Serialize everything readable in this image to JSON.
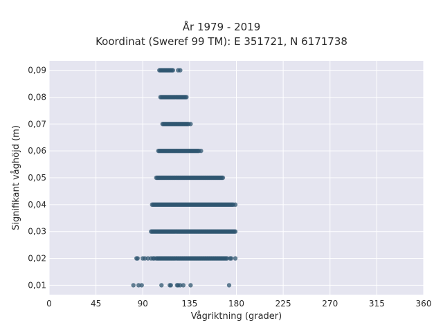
{
  "chart_data": {
    "type": "scatter",
    "title": "År 1979 - 2019",
    "subtitle": "Koordinat (Sweref 99 TM): E 351721, N 6171738",
    "xlabel": "Vågriktning (grader)",
    "ylabel": "Signifikant våghöjd (m)",
    "xlim": [
      0,
      360
    ],
    "ylim": [
      0.0065,
      0.0935
    ],
    "x_ticks": [
      0,
      45,
      90,
      135,
      180,
      225,
      270,
      315,
      360
    ],
    "x_tick_labels": [
      "0",
      "45",
      "90",
      "135",
      "180",
      "225",
      "270",
      "315",
      "360"
    ],
    "y_ticks": [
      0.01,
      0.02,
      0.03,
      0.04,
      0.05,
      0.06,
      0.07,
      0.08,
      0.09
    ],
    "y_tick_labels": [
      "0,01",
      "0,02",
      "0,03",
      "0,04",
      "0,05",
      "0,06",
      "0,07",
      "0,08",
      "0,09"
    ],
    "grid": true,
    "marker_color": "#2f5670",
    "background_color": "#e5e5f0",
    "series": [
      {
        "points": [
          {
            "y": 0.01,
            "x": [
              81,
              86,
              89,
              108,
              116,
              117,
              123,
              124,
              126,
              129,
              136,
              173
            ]
          },
          {
            "y": 0.02,
            "x": [
              84,
              85,
              90,
              92,
              95,
              98,
              100,
              101,
              103,
              104,
              105,
              106,
              107,
              108,
              109,
              110,
              111,
              112,
              113,
              114,
              115,
              116,
              117,
              118,
              119,
              120,
              121,
              122,
              123,
              124,
              125,
              126,
              127,
              128,
              129,
              130,
              131,
              132,
              133,
              134,
              135,
              136,
              137,
              138,
              139,
              140,
              141,
              142,
              143,
              144,
              145,
              146,
              147,
              148,
              149,
              150,
              151,
              152,
              153,
              154,
              155,
              156,
              157,
              158,
              159,
              160,
              161,
              162,
              163,
              164,
              165,
              166,
              167,
              168,
              169,
              170,
              171,
              174,
              175,
              179
            ]
          },
          {
            "y": 0.03,
            "x": [
              98,
              99,
              100,
              101,
              102,
              103,
              104,
              105,
              106,
              107,
              108,
              109,
              110,
              111,
              112,
              113,
              114,
              115,
              116,
              117,
              118,
              119,
              120,
              121,
              122,
              123,
              124,
              125,
              126,
              127,
              128,
              129,
              130,
              131,
              132,
              133,
              134,
              135,
              136,
              137,
              138,
              139,
              140,
              141,
              142,
              143,
              144,
              145,
              146,
              147,
              148,
              149,
              150,
              151,
              152,
              153,
              154,
              155,
              156,
              157,
              158,
              159,
              160,
              161,
              162,
              163,
              164,
              165,
              166,
              167,
              168,
              169,
              170,
              171,
              172,
              173,
              174,
              175,
              176,
              177,
              178,
              179
            ]
          },
          {
            "y": 0.04,
            "x": [
              99,
              100,
              101,
              102,
              103,
              104,
              105,
              106,
              107,
              108,
              109,
              110,
              111,
              112,
              113,
              114,
              115,
              116,
              117,
              118,
              119,
              120,
              121,
              122,
              123,
              124,
              125,
              126,
              127,
              128,
              129,
              130,
              131,
              132,
              133,
              134,
              135,
              136,
              137,
              138,
              139,
              140,
              141,
              142,
              143,
              144,
              145,
              146,
              147,
              148,
              149,
              150,
              151,
              152,
              153,
              154,
              155,
              156,
              157,
              158,
              159,
              160,
              161,
              162,
              163,
              164,
              165,
              166,
              167,
              168,
              169,
              170,
              171,
              172,
              173,
              174,
              175,
              176,
              177,
              179
            ]
          },
          {
            "y": 0.05,
            "x": [
              103,
              104,
              105,
              106,
              107,
              108,
              109,
              110,
              111,
              112,
              113,
              114,
              115,
              116,
              117,
              118,
              119,
              120,
              121,
              122,
              123,
              124,
              125,
              126,
              127,
              128,
              129,
              130,
              131,
              132,
              133,
              134,
              135,
              136,
              137,
              138,
              139,
              140,
              141,
              142,
              143,
              144,
              145,
              146,
              147,
              148,
              149,
              150,
              151,
              152,
              153,
              154,
              155,
              156,
              157,
              158,
              159,
              160,
              161,
              162,
              163,
              164,
              165,
              166,
              167
            ]
          },
          {
            "y": 0.06,
            "x": [
              105,
              106,
              107,
              108,
              109,
              110,
              111,
              112,
              113,
              114,
              115,
              116,
              117,
              118,
              119,
              120,
              121,
              122,
              123,
              124,
              125,
              126,
              127,
              128,
              129,
              130,
              131,
              132,
              133,
              134,
              135,
              136,
              137,
              138,
              139,
              140,
              141,
              142,
              143,
              144,
              146
            ]
          },
          {
            "y": 0.07,
            "x": [
              109,
              110,
              111,
              112,
              113,
              114,
              115,
              116,
              117,
              118,
              119,
              120,
              121,
              122,
              123,
              124,
              125,
              126,
              127,
              128,
              129,
              130,
              131,
              132,
              133,
              134,
              136
            ]
          },
          {
            "y": 0.08,
            "x": [
              107,
              108,
              109,
              110,
              111,
              112,
              113,
              114,
              115,
              116,
              117,
              118,
              119,
              120,
              121,
              122,
              123,
              124,
              125,
              126,
              127,
              128,
              129,
              130,
              131,
              132
            ]
          },
          {
            "y": 0.09,
            "x": [
              106,
              107,
              108,
              109,
              110,
              111,
              112,
              113,
              114,
              115,
              116,
              117,
              118,
              119,
              124,
              126
            ]
          }
        ]
      }
    ]
  }
}
